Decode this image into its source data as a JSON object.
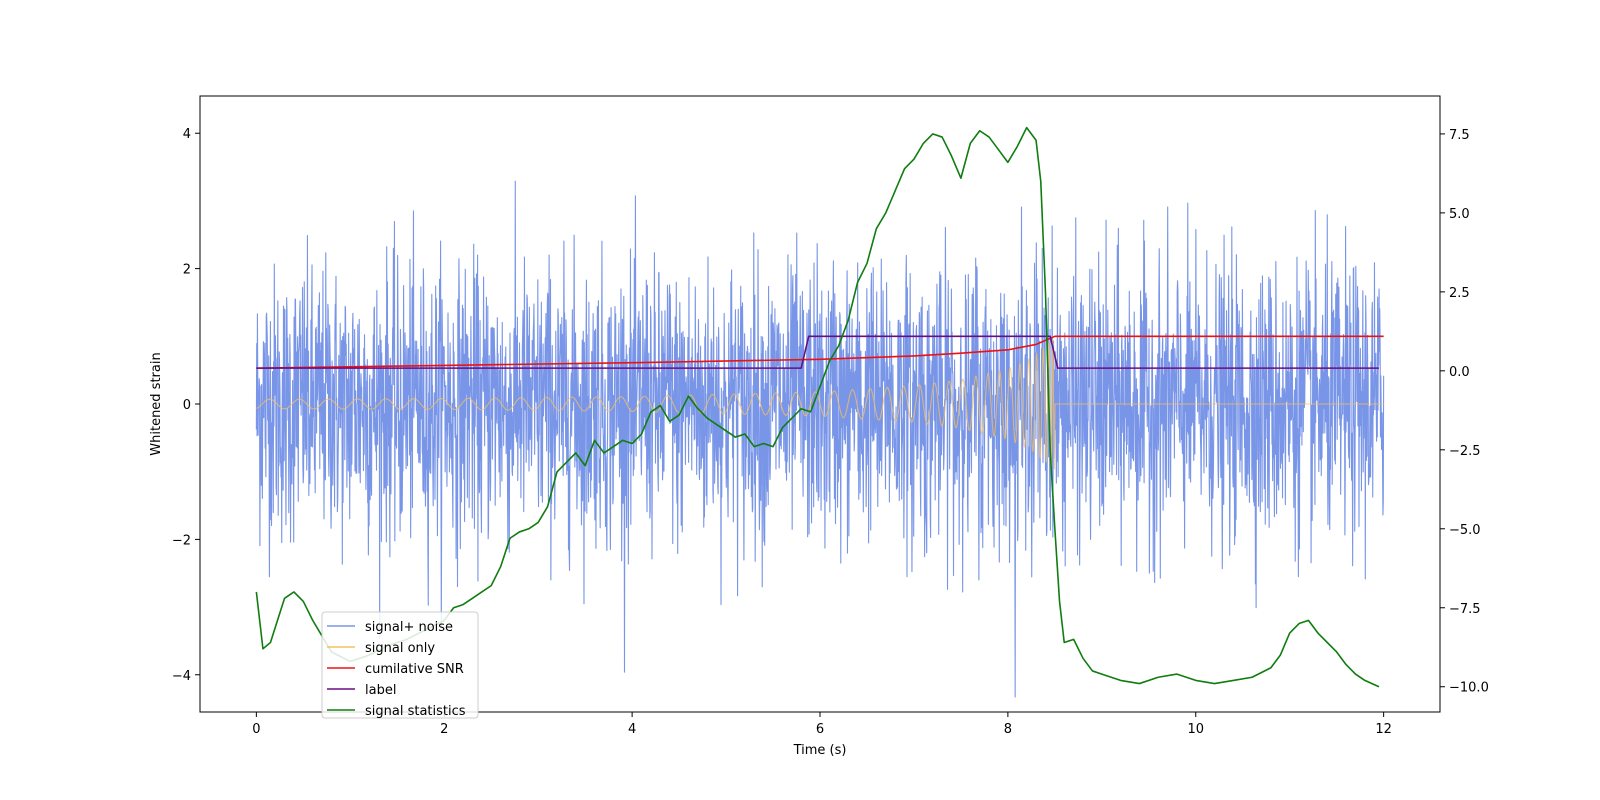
{
  "chart_data": {
    "type": "line",
    "title": "",
    "xlabel": "Time (s)",
    "ylabel": "Whitened strain",
    "y2label": "",
    "xlim": [
      -0.6,
      12.6
    ],
    "ylim": [
      -4.55,
      4.55
    ],
    "y2lim": [
      -10.8,
      8.7
    ],
    "x_ticks": [
      0,
      2,
      4,
      6,
      8,
      10,
      12
    ],
    "x_tick_labels": [
      "0",
      "2",
      "4",
      "6",
      "8",
      "10",
      "12"
    ],
    "y_ticks": [
      -4,
      -2,
      0,
      2,
      4
    ],
    "y_tick_labels": [
      "−4",
      "−2",
      "0",
      "2",
      "4"
    ],
    "y2_ticks": [
      -10,
      -7.5,
      -5,
      -2.5,
      0,
      2.5,
      5,
      7.5
    ],
    "y2_tick_labels": [
      "−10.0",
      "−7.5",
      "−5.0",
      "−2.5",
      "0.0",
      "2.5",
      "5.0",
      "7.5"
    ],
    "grid": false,
    "legend_placement": "lower-left",
    "merger_time": 8.5,
    "series": [
      {
        "name": "signal+ noise",
        "axis": "left",
        "color": "#7895e8",
        "kind": "noisy-signal",
        "t_start": 0,
        "t_end": 12,
        "noise_std": 1.0
      },
      {
        "name": "signal only",
        "axis": "left",
        "color": "#f5c060",
        "kind": "chirp",
        "t_start": 0,
        "t_end": 12,
        "envelope": {
          "x": [
            0,
            2,
            4,
            6,
            7,
            7.5,
            8,
            8.25,
            8.4,
            8.5
          ],
          "y": [
            0.07,
            0.08,
            0.11,
            0.18,
            0.27,
            0.36,
            0.52,
            0.68,
            0.85,
            1.0
          ]
        }
      },
      {
        "name": "cumilative SNR",
        "axis": "left",
        "color": "#ee1111",
        "x": [
          0,
          2,
          4,
          6,
          7,
          7.5,
          8,
          8.3,
          8.5,
          12
        ],
        "y": [
          0.53,
          0.57,
          0.61,
          0.66,
          0.71,
          0.75,
          0.8,
          0.88,
          1.0,
          1.0
        ]
      },
      {
        "name": "label",
        "axis": "left",
        "color": "#6a0d83",
        "x": [
          0,
          5.8,
          5.88,
          8.45,
          8.53,
          11.95
        ],
        "y": [
          0.53,
          0.53,
          1.0,
          1.0,
          0.53,
          0.53
        ]
      },
      {
        "name": "signal statistics",
        "axis": "right",
        "color": "#0f7d0f",
        "x": [
          0,
          0.07,
          0.15,
          0.3,
          0.4,
          0.5,
          0.6,
          0.7,
          0.8,
          1.0,
          1.2,
          1.4,
          1.6,
          1.8,
          2.0,
          2.1,
          2.2,
          2.3,
          2.4,
          2.5,
          2.6,
          2.7,
          2.8,
          2.9,
          3.0,
          3.1,
          3.2,
          3.3,
          3.4,
          3.5,
          3.6,
          3.7,
          3.8,
          3.9,
          4.0,
          4.1,
          4.2,
          4.3,
          4.4,
          4.5,
          4.6,
          4.7,
          4.8,
          4.9,
          5.0,
          5.1,
          5.2,
          5.3,
          5.4,
          5.5,
          5.6,
          5.7,
          5.8,
          5.9,
          6.0,
          6.1,
          6.2,
          6.3,
          6.4,
          6.5,
          6.6,
          6.7,
          6.8,
          6.9,
          7.0,
          7.1,
          7.2,
          7.3,
          7.4,
          7.5,
          7.6,
          7.7,
          7.8,
          7.9,
          8.0,
          8.1,
          8.2,
          8.3,
          8.35,
          8.4,
          8.45,
          8.5,
          8.55,
          8.6,
          8.7,
          8.8,
          8.9,
          9.0,
          9.2,
          9.4,
          9.6,
          9.8,
          10.0,
          10.2,
          10.4,
          10.6,
          10.8,
          10.9,
          11.0,
          11.1,
          11.2,
          11.3,
          11.4,
          11.5,
          11.6,
          11.7,
          11.8,
          11.95
        ],
        "y": [
          -7.0,
          -8.8,
          -8.6,
          -7.2,
          -7.0,
          -7.3,
          -7.9,
          -8.4,
          -8.9,
          -9.2,
          -9.0,
          -8.7,
          -8.5,
          -8.2,
          -7.9,
          -7.5,
          -7.4,
          -7.2,
          -7.0,
          -6.8,
          -6.2,
          -5.3,
          -5.1,
          -5.0,
          -4.8,
          -4.3,
          -3.2,
          -2.9,
          -2.6,
          -3.0,
          -2.2,
          -2.6,
          -2.4,
          -2.2,
          -2.3,
          -2.0,
          -1.3,
          -1.1,
          -1.6,
          -1.4,
          -0.8,
          -1.2,
          -1.5,
          -1.7,
          -1.9,
          -2.1,
          -2.0,
          -2.4,
          -2.3,
          -2.4,
          -1.8,
          -1.5,
          -1.2,
          -1.3,
          -0.5,
          0.3,
          0.8,
          1.6,
          2.8,
          3.4,
          4.5,
          5.0,
          5.7,
          6.4,
          6.7,
          7.2,
          7.5,
          7.4,
          6.8,
          6.1,
          7.2,
          7.6,
          7.4,
          7.0,
          6.6,
          7.1,
          7.7,
          7.3,
          6.0,
          2.5,
          -2.5,
          -5.0,
          -7.3,
          -8.6,
          -8.5,
          -9.1,
          -9.5,
          -9.6,
          -9.8,
          -9.9,
          -9.7,
          -9.6,
          -9.8,
          -9.9,
          -9.8,
          -9.7,
          -9.4,
          -9.0,
          -8.3,
          -8.0,
          -7.9,
          -8.3,
          -8.6,
          -8.9,
          -9.3,
          -9.6,
          -9.8,
          -10.0
        ]
      }
    ]
  }
}
